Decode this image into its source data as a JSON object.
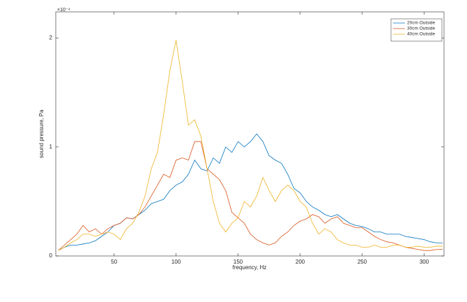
{
  "chart_data": {
    "type": "line",
    "x_label": "frequency, Hz",
    "y_label": "sound pressure, Pa",
    "y_exponent_label": "×10⁻⁴",
    "x": [
      5,
      10,
      15,
      20,
      25,
      30,
      35,
      40,
      45,
      50,
      55,
      60,
      65,
      70,
      75,
      80,
      85,
      90,
      95,
      100,
      105,
      110,
      115,
      120,
      125,
      130,
      135,
      140,
      145,
      150,
      155,
      160,
      165,
      170,
      175,
      180,
      185,
      190,
      195,
      200,
      205,
      210,
      215,
      220,
      225,
      230,
      235,
      240,
      245,
      250,
      255,
      260,
      265,
      270,
      275,
      280,
      285,
      290,
      295,
      300,
      305,
      310,
      315
    ],
    "series": [
      {
        "name": "20cm Outside",
        "color": "#0072BD",
        "values": [
          0.05,
          0.08,
          0.1,
          0.1,
          0.11,
          0.12,
          0.14,
          0.18,
          0.22,
          0.28,
          0.3,
          0.35,
          0.34,
          0.38,
          0.42,
          0.48,
          0.5,
          0.52,
          0.6,
          0.65,
          0.68,
          0.75,
          0.88,
          0.8,
          0.78,
          0.9,
          0.85,
          1.0,
          0.95,
          1.05,
          1.0,
          1.05,
          1.12,
          1.05,
          0.92,
          0.88,
          0.85,
          0.75,
          0.62,
          0.58,
          0.5,
          0.45,
          0.42,
          0.38,
          0.36,
          0.38,
          0.34,
          0.3,
          0.28,
          0.27,
          0.25,
          0.22,
          0.22,
          0.2,
          0.2,
          0.2,
          0.18,
          0.17,
          0.16,
          0.15,
          0.13,
          0.12,
          0.12
        ]
      },
      {
        "name": "30cm Outside",
        "color": "#D95319",
        "values": [
          0.05,
          0.1,
          0.15,
          0.2,
          0.28,
          0.22,
          0.25,
          0.2,
          0.25,
          0.28,
          0.3,
          0.35,
          0.34,
          0.38,
          0.45,
          0.55,
          0.65,
          0.75,
          0.72,
          0.88,
          0.9,
          0.88,
          1.05,
          1.05,
          0.8,
          0.75,
          0.7,
          0.6,
          0.4,
          0.35,
          0.3,
          0.2,
          0.15,
          0.12,
          0.1,
          0.12,
          0.18,
          0.22,
          0.28,
          0.32,
          0.34,
          0.38,
          0.36,
          0.3,
          0.34,
          0.36,
          0.3,
          0.28,
          0.26,
          0.26,
          0.22,
          0.18,
          0.15,
          0.13,
          0.12,
          0.1,
          0.08,
          0.07,
          0.06,
          0.05,
          0.05,
          0.06,
          0.06
        ]
      },
      {
        "name": "40cm Outside",
        "color": "#EDB120",
        "values": [
          0.05,
          0.08,
          0.12,
          0.15,
          0.2,
          0.2,
          0.18,
          0.2,
          0.22,
          0.2,
          0.15,
          0.25,
          0.3,
          0.4,
          0.55,
          0.8,
          0.95,
          1.3,
          1.7,
          1.98,
          1.6,
          1.2,
          1.25,
          1.1,
          0.8,
          0.5,
          0.3,
          0.22,
          0.3,
          0.35,
          0.5,
          0.45,
          0.55,
          0.72,
          0.6,
          0.5,
          0.6,
          0.65,
          0.6,
          0.5,
          0.45,
          0.3,
          0.2,
          0.25,
          0.22,
          0.15,
          0.12,
          0.1,
          0.1,
          0.08,
          0.08,
          0.1,
          0.08,
          0.08,
          0.1,
          0.1,
          0.08,
          0.08,
          0.09,
          0.08,
          0.08,
          0.09,
          0.09
        ]
      }
    ],
    "xlim": [
      3,
      316
    ],
    "xticks": [
      50,
      100,
      150,
      200,
      250,
      300
    ],
    "ylim": [
      0,
      2.24
    ],
    "yticks": [
      0,
      1,
      2
    ],
    "legend": "top-right",
    "grid": false
  }
}
